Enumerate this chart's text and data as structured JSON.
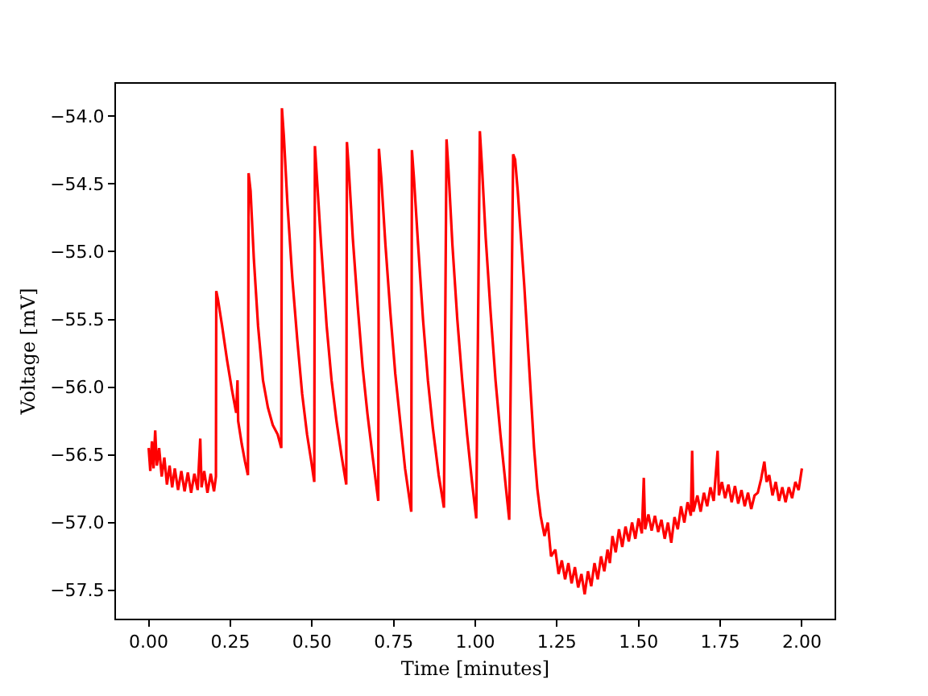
{
  "chart_data": {
    "type": "line",
    "xlabel": "Time [minutes]",
    "ylabel": "Voltage [mV]",
    "xlim": [
      -0.1,
      2.1
    ],
    "ylim": [
      -57.71,
      -53.76
    ],
    "xticks": [
      {
        "value": 0,
        "label": "0.00"
      },
      {
        "value": 0.25,
        "label": "0.25"
      },
      {
        "value": 0.5,
        "label": "0.50"
      },
      {
        "value": 0.75,
        "label": "0.75"
      },
      {
        "value": 1,
        "label": "1.00"
      },
      {
        "value": 1.25,
        "label": "1.25"
      },
      {
        "value": 1.5,
        "label": "1.50"
      },
      {
        "value": 1.75,
        "label": "1.75"
      },
      {
        "value": 2,
        "label": "2.00"
      }
    ],
    "yticks": [
      {
        "value": -57.5,
        "label": "−57.5"
      },
      {
        "value": -57,
        "label": "−57.0"
      },
      {
        "value": -56.5,
        "label": "−56.5"
      },
      {
        "value": -56,
        "label": "−56.0"
      },
      {
        "value": -55.5,
        "label": "−55.5"
      },
      {
        "value": -55,
        "label": "−55.0"
      },
      {
        "value": -54.5,
        "label": "−54.5"
      },
      {
        "value": -54,
        "label": "−54.0"
      }
    ],
    "marker": "none",
    "line_style": "solid",
    "x": [
      0.0,
      0.005,
      0.01,
      0.015,
      0.02,
      0.025,
      0.032,
      0.04,
      0.048,
      0.056,
      0.064,
      0.072,
      0.08,
      0.09,
      0.1,
      0.11,
      0.12,
      0.13,
      0.14,
      0.15,
      0.158,
      0.162,
      0.17,
      0.18,
      0.19,
      0.2,
      0.206,
      0.207,
      0.212,
      0.225,
      0.24,
      0.255,
      0.268,
      0.272,
      0.274,
      0.285,
      0.295,
      0.304,
      0.306,
      0.312,
      0.322,
      0.335,
      0.35,
      0.365,
      0.38,
      0.395,
      0.406,
      0.408,
      0.414,
      0.425,
      0.44,
      0.455,
      0.47,
      0.485,
      0.498,
      0.507,
      0.509,
      0.515,
      0.528,
      0.545,
      0.56,
      0.575,
      0.59,
      0.605,
      0.607,
      0.613,
      0.625,
      0.64,
      0.655,
      0.67,
      0.685,
      0.703,
      0.705,
      0.712,
      0.725,
      0.74,
      0.755,
      0.77,
      0.785,
      0.804,
      0.806,
      0.812,
      0.825,
      0.84,
      0.855,
      0.87,
      0.888,
      0.904,
      0.912,
      0.918,
      0.93,
      0.945,
      0.96,
      0.975,
      0.99,
      1.003,
      1.014,
      1.02,
      1.032,
      1.047,
      1.062,
      1.077,
      1.092,
      1.104,
      1.116,
      1.122,
      1.13,
      1.14,
      1.15,
      1.16,
      1.17,
      1.18,
      1.19,
      1.2,
      1.212,
      1.222,
      1.232,
      1.245,
      1.255,
      1.265,
      1.275,
      1.285,
      1.295,
      1.305,
      1.315,
      1.325,
      1.335,
      1.345,
      1.355,
      1.365,
      1.375,
      1.385,
      1.395,
      1.405,
      1.412,
      1.42,
      1.43,
      1.44,
      1.45,
      1.46,
      1.47,
      1.48,
      1.49,
      1.5,
      1.51,
      1.516,
      1.52,
      1.53,
      1.54,
      1.55,
      1.56,
      1.57,
      1.58,
      1.59,
      1.6,
      1.61,
      1.62,
      1.63,
      1.64,
      1.65,
      1.66,
      1.664,
      1.668,
      1.68,
      1.69,
      1.7,
      1.71,
      1.72,
      1.73,
      1.742,
      1.746,
      1.755,
      1.765,
      1.775,
      1.785,
      1.795,
      1.805,
      1.815,
      1.825,
      1.835,
      1.845,
      1.855,
      1.865,
      1.875,
      1.885,
      1.892,
      1.9,
      1.91,
      1.92,
      1.93,
      1.94,
      1.95,
      1.96,
      1.97,
      1.98,
      1.99,
      2.0
    ],
    "series": [
      {
        "color": "#ff0000",
        "values": [
          -56.45,
          -56.62,
          -56.4,
          -56.6,
          -56.32,
          -56.58,
          -56.45,
          -56.66,
          -56.52,
          -56.72,
          -56.58,
          -56.74,
          -56.6,
          -56.76,
          -56.62,
          -56.77,
          -56.63,
          -56.78,
          -56.64,
          -56.76,
          -56.38,
          -56.74,
          -56.62,
          -56.78,
          -56.64,
          -56.77,
          -56.66,
          -55.29,
          -55.35,
          -55.55,
          -55.8,
          -56.02,
          -56.19,
          -55.95,
          -56.25,
          -56.42,
          -56.55,
          -56.65,
          -54.42,
          -54.55,
          -55.05,
          -55.55,
          -55.95,
          -56.15,
          -56.28,
          -56.35,
          -56.45,
          -53.94,
          -54.15,
          -54.65,
          -55.2,
          -55.65,
          -56.05,
          -56.35,
          -56.55,
          -56.7,
          -54.22,
          -54.45,
          -54.95,
          -55.55,
          -55.95,
          -56.25,
          -56.5,
          -56.72,
          -54.19,
          -54.4,
          -54.9,
          -55.4,
          -55.85,
          -56.2,
          -56.5,
          -56.84,
          -54.24,
          -54.45,
          -54.95,
          -55.45,
          -55.9,
          -56.25,
          -56.6,
          -56.92,
          -54.25,
          -54.45,
          -54.95,
          -55.5,
          -55.95,
          -56.3,
          -56.65,
          -56.89,
          -54.17,
          -54.4,
          -54.95,
          -55.5,
          -55.95,
          -56.35,
          -56.7,
          -56.97,
          -54.11,
          -54.35,
          -54.9,
          -55.45,
          -55.95,
          -56.35,
          -56.7,
          -56.98,
          -54.28,
          -54.32,
          -54.55,
          -54.9,
          -55.25,
          -55.65,
          -56.05,
          -56.45,
          -56.75,
          -56.95,
          -57.1,
          -57.0,
          -57.25,
          -57.2,
          -57.38,
          -57.28,
          -57.42,
          -57.3,
          -57.45,
          -57.33,
          -57.48,
          -57.38,
          -57.53,
          -57.36,
          -57.47,
          -57.3,
          -57.42,
          -57.25,
          -57.36,
          -57.2,
          -57.3,
          -57.1,
          -57.22,
          -57.05,
          -57.18,
          -57.03,
          -57.14,
          -57.0,
          -57.12,
          -56.97,
          -57.08,
          -56.67,
          -57.05,
          -56.94,
          -57.06,
          -56.95,
          -57.07,
          -56.98,
          -57.12,
          -57.0,
          -57.15,
          -56.96,
          -57.05,
          -56.88,
          -57.0,
          -56.85,
          -56.95,
          -56.47,
          -56.92,
          -56.8,
          -56.92,
          -56.78,
          -56.88,
          -56.74,
          -56.84,
          -56.47,
          -56.8,
          -56.7,
          -56.82,
          -56.72,
          -56.85,
          -56.73,
          -56.86,
          -56.76,
          -56.88,
          -56.78,
          -56.9,
          -56.8,
          -56.78,
          -56.68,
          -56.55,
          -56.7,
          -56.65,
          -56.8,
          -56.7,
          -56.84,
          -56.74,
          -56.85,
          -56.74,
          -56.82,
          -56.7,
          -56.76,
          -56.6
        ]
      }
    ]
  }
}
